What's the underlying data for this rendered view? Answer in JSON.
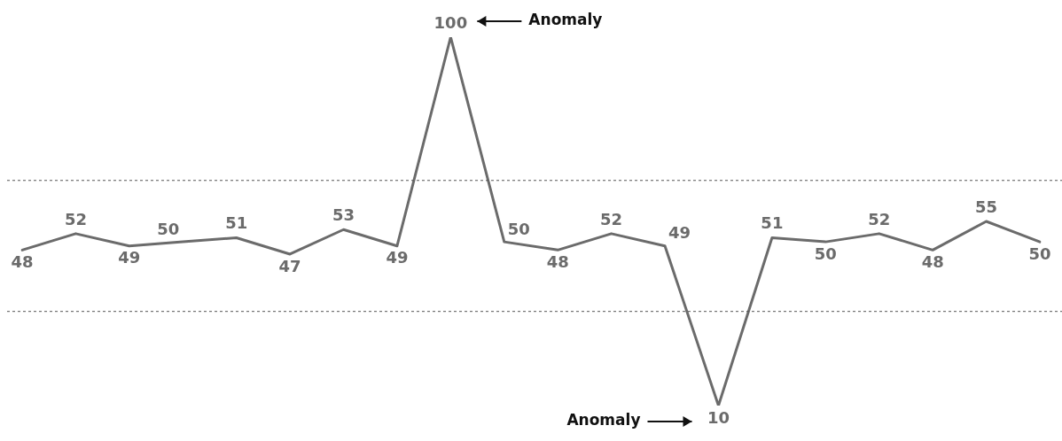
{
  "chart_data": {
    "type": "line",
    "categories": [
      null,
      null,
      null,
      null,
      null,
      null,
      null,
      null,
      null,
      null,
      null,
      null,
      null,
      null,
      null,
      null,
      null,
      null,
      null,
      null
    ],
    "series": [
      {
        "color": "#6b6b6b",
        "values": [
          48,
          52,
          49,
          50,
          51,
          47,
          53,
          49,
          100,
          50,
          48,
          52,
          49,
          10,
          51,
          50,
          52,
          48,
          55,
          50
        ]
      }
    ],
    "legend": false,
    "marker": "none",
    "line_style": "solid",
    "data_labels": true,
    "ref_lines": [
      {
        "axis": "y",
        "value": 65,
        "color": "#555555",
        "line_style": "dotted"
      },
      {
        "axis": "y",
        "value": 33,
        "color": "#555555",
        "line_style": "dotted"
      }
    ],
    "annotations": [
      "Anomaly",
      "Anomaly"
    ]
  }
}
